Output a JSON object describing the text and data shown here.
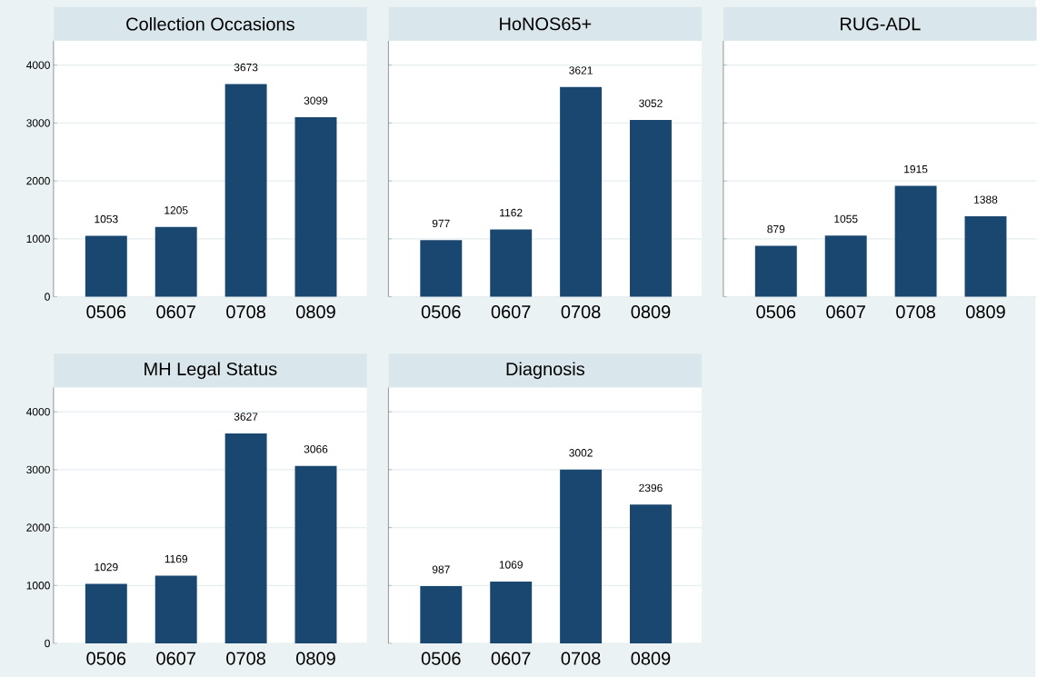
{
  "chart_data": [
    {
      "type": "bar",
      "title": "Collection Occasions",
      "categories": [
        "0506",
        "0607",
        "0708",
        "0809"
      ],
      "values": [
        1053,
        1205,
        3673,
        3099
      ],
      "color": "#1a476f",
      "ylim": [
        0,
        4420
      ],
      "yticks": [
        0,
        1000,
        2000,
        3000,
        4000
      ],
      "grid": "y",
      "data_labels": true
    },
    {
      "type": "bar",
      "title": "HoNOS65+",
      "categories": [
        "0506",
        "0607",
        "0708",
        "0809"
      ],
      "values": [
        977,
        1162,
        3621,
        3052
      ],
      "color": "#1a476f",
      "ylim": [
        0,
        4420
      ],
      "yticks": [
        0,
        1000,
        2000,
        3000,
        4000
      ],
      "grid": "y",
      "data_labels": true,
      "tick_labels": "x"
    },
    {
      "type": "bar",
      "title": "RUG-ADL",
      "categories": [
        "0506",
        "0607",
        "0708",
        "0809"
      ],
      "values": [
        879,
        1055,
        1915,
        1388
      ],
      "color": "#1a476f",
      "ylim": [
        0,
        4420
      ],
      "yticks": [
        0,
        1000,
        2000,
        3000,
        4000
      ],
      "grid": "y",
      "data_labels": true,
      "tick_labels": "x"
    },
    {
      "type": "bar",
      "title": "MH Legal Status",
      "categories": [
        "0506",
        "0607",
        "0708",
        "0809"
      ],
      "values": [
        1029,
        1169,
        3627,
        3066
      ],
      "color": "#1a476f",
      "ylim": [
        0,
        4420
      ],
      "yticks": [
        0,
        1000,
        2000,
        3000,
        4000
      ],
      "grid": "y",
      "data_labels": true
    },
    {
      "type": "bar",
      "title": "Diagnosis",
      "categories": [
        "0506",
        "0607",
        "0708",
        "0809"
      ],
      "values": [
        987,
        1069,
        3002,
        2396
      ],
      "color": "#1a476f",
      "ylim": [
        0,
        4420
      ],
      "yticks": [
        0,
        1000,
        2000,
        3000,
        4000
      ],
      "grid": "y",
      "data_labels": true,
      "tick_labels": "x"
    }
  ]
}
